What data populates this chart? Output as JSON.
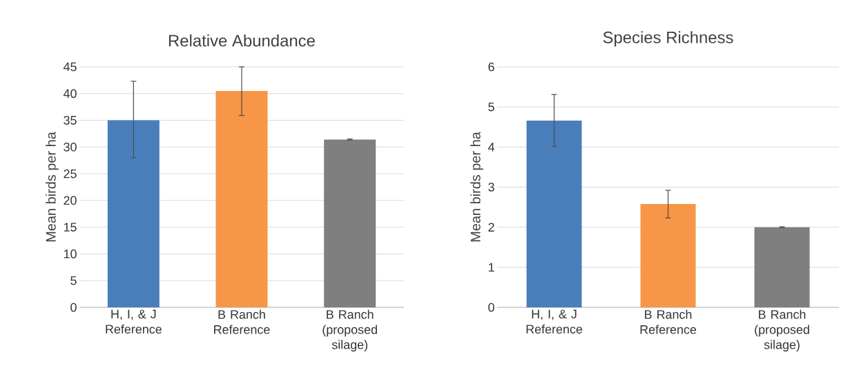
{
  "chart_data": [
    {
      "type": "bar",
      "title": "Relative Abundance",
      "ylabel": "Mean birds per ha",
      "categories": [
        "H, I, & J Reference",
        "B Ranch Reference",
        "B Ranch (proposed silage)"
      ],
      "values": [
        35,
        40.5,
        31.4
      ],
      "colors": [
        "#4a7ebb",
        "#f79646",
        "#7f7f7f"
      ],
      "errors": [
        [
          28,
          42.3
        ],
        [
          35.9,
          45
        ],
        0.1
      ],
      "ylim": [
        0,
        45
      ],
      "yticks": [
        0,
        5,
        10,
        15,
        20,
        25,
        30,
        35,
        40,
        45
      ],
      "grid": "y"
    },
    {
      "type": "bar",
      "title": "Species Richness",
      "ylabel": "Mean birds per ha",
      "categories": [
        "H, I, & J Reference",
        "B Ranch Reference",
        "B Ranch (proposed silage)"
      ],
      "values": [
        4.66,
        2.58,
        2.0
      ],
      "colors": [
        "#4a7ebb",
        "#f79646",
        "#7f7f7f"
      ],
      "errors": [
        [
          4.02,
          5.31
        ],
        [
          2.23,
          2.92
        ],
        0.01
      ],
      "ylim": [
        0,
        6
      ],
      "yticks": [
        0,
        1,
        2,
        3,
        4,
        5,
        6
      ],
      "grid": "y"
    }
  ]
}
